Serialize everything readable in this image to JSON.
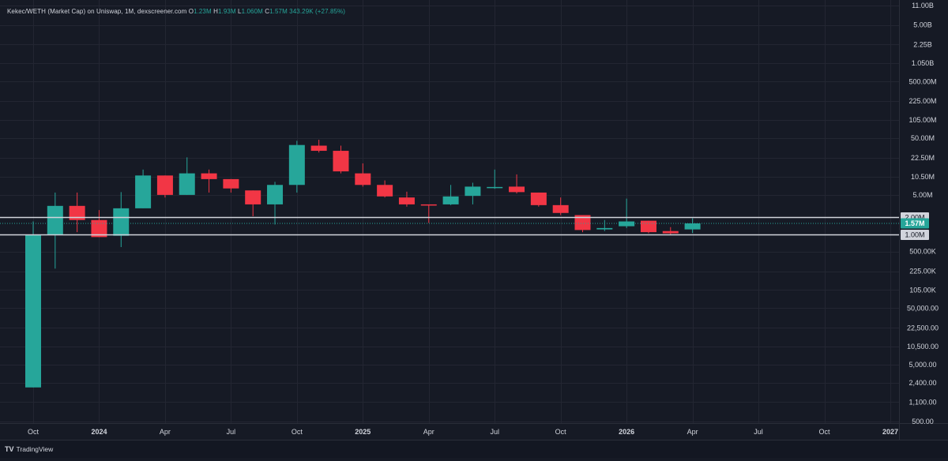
{
  "legend": {
    "symbol": "Kekec/WETH (Market Cap) on Uniswap, 1M, dexscreener.com",
    "o_label": "O",
    "o_value": "1.23M",
    "h_label": "H",
    "h_value": "1.93M",
    "l_label": "L",
    "l_value": "1.060M",
    "c_label": "C",
    "c_value": "1.57M",
    "change": "343.29K (+27.85%)"
  },
  "footer": {
    "brand": "TradingView",
    "logo": "TV"
  },
  "colors": {
    "background": "#161a25",
    "grid": "#232632",
    "up": "#26a69a",
    "down": "#f23645",
    "text": "#d1d4dc",
    "hline": "#d1d4dc",
    "last_price_bg": "#26a69a",
    "hline_label_bg": "#d1d4dc"
  },
  "chart_data": {
    "type": "candlestick",
    "scale": "log",
    "ylim": [
      500,
      11000000000
    ],
    "price_axis_labels": [
      "11.00B",
      "5.00B",
      "2.25B",
      "1.050B",
      "500.00M",
      "225.00M",
      "105.00M",
      "50.00M",
      "22.50M",
      "10.50M",
      "5.00M",
      "500.00K",
      "225.00K",
      "105.00K",
      "50,000.00",
      "22,500.00",
      "10,500.00",
      "5,000.00",
      "2,400.00",
      "1,100.00",
      "500.00"
    ],
    "price_axis_values": [
      11000000000,
      5000000000,
      2250000000,
      1050000000,
      500000000,
      225000000,
      105000000,
      50000000,
      22500000,
      10500000,
      5000000,
      500000,
      225000,
      105000,
      50000,
      22500,
      10500,
      5000,
      2400,
      1100,
      500
    ],
    "time_axis": [
      {
        "label": "Oct",
        "index": 0,
        "bold": false
      },
      {
        "label": "2024",
        "index": 3,
        "bold": true
      },
      {
        "label": "Apr",
        "index": 6,
        "bold": false
      },
      {
        "label": "Jul",
        "index": 9,
        "bold": false
      },
      {
        "label": "Oct",
        "index": 12,
        "bold": false
      },
      {
        "label": "2025",
        "index": 15,
        "bold": true
      },
      {
        "label": "Apr",
        "index": 18,
        "bold": false
      },
      {
        "label": "Jul",
        "index": 21,
        "bold": false
      },
      {
        "label": "Oct",
        "index": 24,
        "bold": false
      },
      {
        "label": "2026",
        "index": 27,
        "bold": true
      },
      {
        "label": "Apr",
        "index": 30,
        "bold": false
      },
      {
        "label": "Jul",
        "index": 33,
        "bold": false
      },
      {
        "label": "Oct",
        "index": 36,
        "bold": false
      },
      {
        "label": "2027",
        "index": 39,
        "bold": true
      }
    ],
    "candles": [
      {
        "date": "2023-10",
        "o": 2000,
        "h": 1700000,
        "l": 2000,
        "c": 1000000
      },
      {
        "date": "2023-11",
        "o": 1000000,
        "h": 5500000,
        "l": 250000,
        "c": 3200000
      },
      {
        "date": "2023-12",
        "o": 3200000,
        "h": 5500000,
        "l": 1100000,
        "c": 1800000
      },
      {
        "date": "2024-01",
        "o": 1800000,
        "h": 2700000,
        "l": 900000,
        "c": 900000
      },
      {
        "date": "2024-02",
        "o": 950000,
        "h": 5600000,
        "l": 600000,
        "c": 2900000
      },
      {
        "date": "2024-03",
        "o": 2900000,
        "h": 14000000,
        "l": 2900000,
        "c": 11000000
      },
      {
        "date": "2024-04",
        "o": 11000000,
        "h": 11000000,
        "l": 4500000,
        "c": 5000000
      },
      {
        "date": "2024-05",
        "o": 5000000,
        "h": 23000000,
        "l": 5000000,
        "c": 12000000
      },
      {
        "date": "2024-06",
        "o": 12000000,
        "h": 14000000,
        "l": 5500000,
        "c": 9500000
      },
      {
        "date": "2024-07",
        "o": 9500000,
        "h": 9500000,
        "l": 5500000,
        "c": 6500000
      },
      {
        "date": "2024-08",
        "o": 6000000,
        "h": 6000000,
        "l": 2100000,
        "c": 3400000
      },
      {
        "date": "2024-09",
        "o": 3400000,
        "h": 8500000,
        "l": 1500000,
        "c": 7500000
      },
      {
        "date": "2024-10",
        "o": 7500000,
        "h": 45000000,
        "l": 5500000,
        "c": 38000000
      },
      {
        "date": "2024-11",
        "o": 37000000,
        "h": 47000000,
        "l": 28000000,
        "c": 30000000
      },
      {
        "date": "2024-12",
        "o": 30000000,
        "h": 37000000,
        "l": 12000000,
        "c": 13000000
      },
      {
        "date": "2025-01",
        "o": 12000000,
        "h": 18000000,
        "l": 7000000,
        "c": 7500000
      },
      {
        "date": "2025-02",
        "o": 7500000,
        "h": 9000000,
        "l": 4500000,
        "c": 4700000
      },
      {
        "date": "2025-03",
        "o": 4500000,
        "h": 5700000,
        "l": 3100000,
        "c": 3400000
      },
      {
        "date": "2025-04",
        "o": 3400000,
        "h": 3400000,
        "l": 1600000,
        "c": 3300000
      },
      {
        "date": "2025-05",
        "o": 3400000,
        "h": 7500000,
        "l": 3300000,
        "c": 4700000
      },
      {
        "date": "2025-06",
        "o": 4800000,
        "h": 8200000,
        "l": 3400000,
        "c": 7000000
      },
      {
        "date": "2025-07",
        "o": 6800000,
        "h": 14000000,
        "l": 6400000,
        "c": 6900000
      },
      {
        "date": "2025-08",
        "o": 7000000,
        "h": 11500000,
        "l": 5300000,
        "c": 5600000
      },
      {
        "date": "2025-09",
        "o": 5500000,
        "h": 5500000,
        "l": 3100000,
        "c": 3300000
      },
      {
        "date": "2025-10",
        "o": 3300000,
        "h": 4500000,
        "l": 2200000,
        "c": 2400000
      },
      {
        "date": "2025-11",
        "o": 2200000,
        "h": 2200000,
        "l": 1100000,
        "c": 1200000
      },
      {
        "date": "2025-12",
        "o": 1230000,
        "h": 1800000,
        "l": 1150000,
        "c": 1300000
      },
      {
        "date": "2026-01",
        "o": 1400000,
        "h": 4300000,
        "l": 1300000,
        "c": 1700000
      },
      {
        "date": "2026-02",
        "o": 1750000,
        "h": 1750000,
        "l": 1050000,
        "c": 1100000
      },
      {
        "date": "2026-03",
        "o": 1150000,
        "h": 1350000,
        "l": 1000000,
        "c": 1050000
      },
      {
        "date": "2026-04",
        "o": 1230000,
        "h": 1930000,
        "l": 1060000,
        "c": 1570000
      }
    ],
    "horizontal_lines": [
      {
        "value": 2000000,
        "label": "2.00M"
      },
      {
        "value": 1000000,
        "label": "1.00M"
      }
    ],
    "last_price": {
      "value": 1570000,
      "label": "1.57M"
    }
  }
}
